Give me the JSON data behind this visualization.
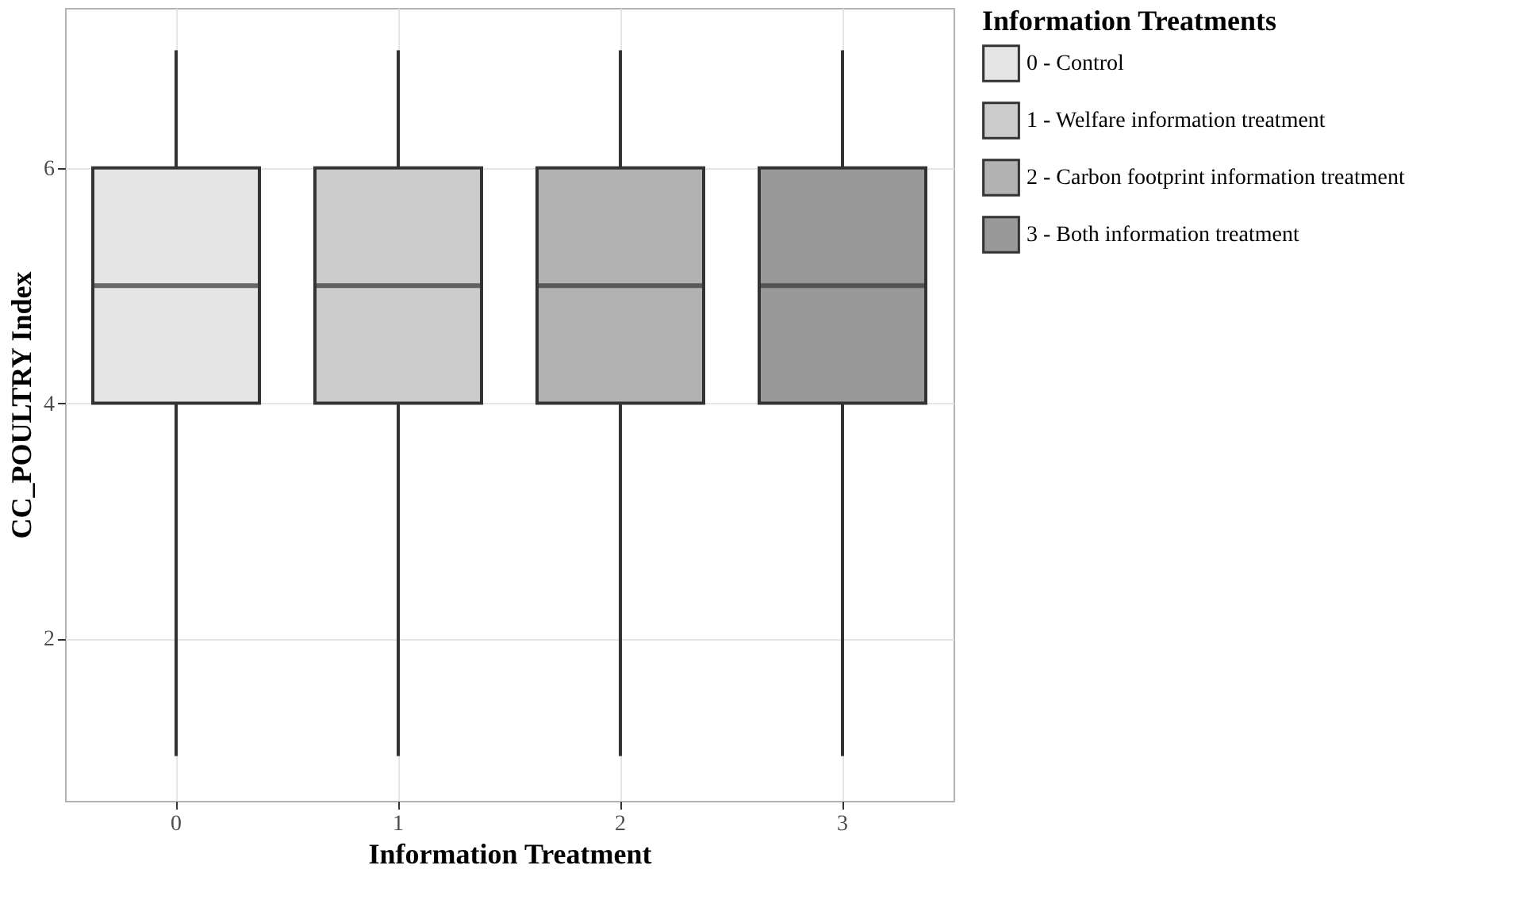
{
  "chart_data": {
    "type": "box",
    "xlabel": "Information Treatment",
    "ylabel": "CC_POULTRY Index",
    "legend_title": "Information Treatments",
    "categories": [
      "0",
      "1",
      "2",
      "3"
    ],
    "series": [
      {
        "name": "0 - Control",
        "color": "#e5e5e5",
        "x": [
          "0"
        ],
        "boxes": [
          {
            "low": 1,
            "q1": 4,
            "median": 5,
            "q3": 6,
            "high": 7
          }
        ]
      },
      {
        "name": "1 - Welfare information treatment",
        "color": "#cccccc",
        "x": [
          "1"
        ],
        "boxes": [
          {
            "low": 1,
            "q1": 4,
            "median": 5,
            "q3": 6,
            "high": 7
          }
        ]
      },
      {
        "name": "2 - Carbon footprint information treatment",
        "color": "#b2b2b2",
        "x": [
          "2"
        ],
        "boxes": [
          {
            "low": 1,
            "q1": 4,
            "median": 5,
            "q3": 6,
            "high": 7
          }
        ]
      },
      {
        "name": "3 - Both information treatment",
        "color": "#999999",
        "x": [
          "3"
        ],
        "boxes": [
          {
            "low": 1,
            "q1": 4,
            "median": 5,
            "q3": 6,
            "high": 7
          }
        ]
      }
    ],
    "ylim": [
      0.62,
      7.36
    ],
    "yticks": [
      2,
      4,
      6
    ],
    "grid": true,
    "legend": "right"
  }
}
